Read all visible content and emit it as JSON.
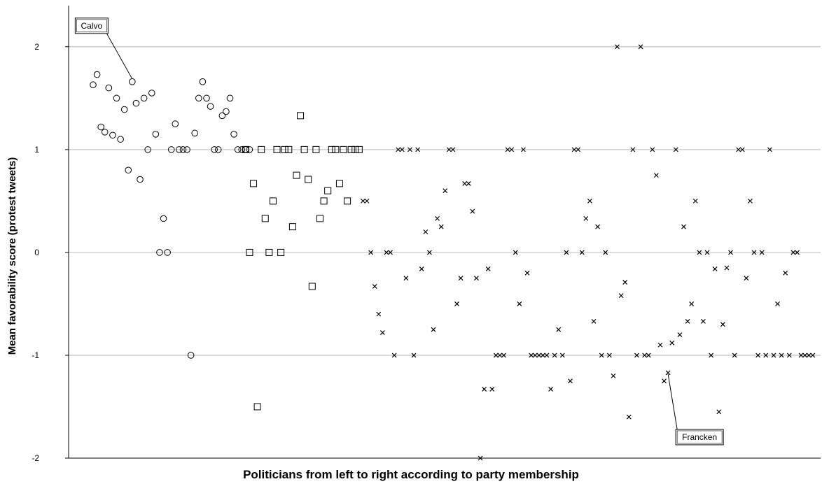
{
  "chart_data": {
    "type": "scatter",
    "xlabel": "Politicians from left to right according to party membership",
    "ylabel": "Mean favorability score (protest tweets)",
    "ylim": [
      -2,
      2.4
    ],
    "yticks": [
      -2,
      -1,
      0,
      1,
      2
    ],
    "grid": true,
    "series": [
      {
        "marker": "circle",
        "x": [
          1,
          2,
          3,
          4,
          5,
          6,
          7,
          8,
          9,
          10,
          11,
          12,
          13,
          14,
          15,
          16,
          17,
          18,
          19,
          20,
          21,
          22,
          23,
          24,
          25,
          26,
          27,
          28,
          29,
          30,
          31,
          32,
          33,
          34,
          35,
          36,
          37,
          38,
          39,
          40,
          41
        ],
        "y": [
          1.63,
          1.73,
          1.22,
          1.17,
          1.6,
          1.14,
          1.5,
          1.1,
          1.39,
          0.8,
          1.66,
          1.45,
          0.71,
          1.5,
          1.0,
          1.55,
          1.15,
          0.0,
          0.33,
          0.0,
          1.0,
          1.25,
          1.0,
          1.0,
          1.0,
          -1.0,
          1.16,
          1.5,
          1.66,
          1.5,
          1.42,
          1.0,
          1.0,
          1.33,
          1.37,
          1.5,
          1.15,
          1.0,
          1.0,
          1.0,
          1.0
        ]
      },
      {
        "marker": "square",
        "x": [
          40,
          41,
          42,
          43,
          44,
          45,
          46,
          47,
          48,
          49,
          50,
          51,
          52,
          53,
          54,
          55,
          56,
          57,
          58,
          59,
          60,
          61,
          62,
          63,
          64,
          65,
          66,
          67,
          68,
          69
        ],
        "y": [
          1.0,
          0.0,
          0.67,
          -1.5,
          1.0,
          0.33,
          0.0,
          0.5,
          1.0,
          0.0,
          1.0,
          1.0,
          0.25,
          0.75,
          1.33,
          1.0,
          0.71,
          -0.33,
          1.0,
          0.33,
          0.5,
          0.6,
          1.0,
          1.0,
          0.67,
          1.0,
          0.5,
          1.0,
          1.0,
          1.0
        ],
        "value_ticks": [
          1.0,
          0.0,
          0.67,
          -1.5,
          1.0,
          0.33,
          0.0,
          0.5,
          1.0,
          0.0,
          1.0,
          1.0,
          0.25,
          0.75,
          1.33,
          1.0,
          0.71,
          -0.33,
          1.0,
          0.33,
          0.5,
          0.6,
          1.0,
          1.0,
          0.67,
          1.0,
          0.5,
          1.0,
          1.0,
          1.0
        ]
      },
      {
        "marker": "cross",
        "x": [
          70,
          71,
          72,
          73,
          74,
          75,
          76,
          77,
          78,
          79,
          80,
          81,
          82,
          83,
          84,
          85,
          86,
          87,
          88,
          89,
          90,
          91,
          92,
          93,
          94,
          95,
          96,
          97,
          98,
          99,
          100,
          101,
          102,
          103,
          104,
          105,
          106,
          107,
          108,
          109,
          110,
          111,
          112,
          113,
          114,
          115,
          116,
          117,
          118,
          119,
          120,
          121,
          122,
          123,
          124,
          125,
          126,
          127,
          128,
          129,
          130,
          131,
          132,
          133,
          134,
          135,
          136,
          137,
          138,
          139,
          140,
          141,
          142,
          143,
          144,
          145,
          146,
          147,
          148,
          149,
          150,
          151,
          152,
          153,
          154,
          155,
          156,
          157,
          158,
          159,
          160,
          161,
          162,
          163,
          164,
          165,
          166,
          167,
          168,
          169,
          170,
          171,
          172,
          173,
          174,
          175,
          176,
          177,
          178,
          179,
          180,
          181,
          182,
          183,
          184,
          185
        ],
        "y": [
          0.5,
          0.5,
          0.0,
          -0.33,
          -0.6,
          -0.78,
          0.0,
          0.0,
          -1.0,
          1.0,
          1.0,
          -0.25,
          1.0,
          -1.0,
          1.0,
          -0.16,
          0.2,
          0.0,
          -0.75,
          0.33,
          0.25,
          0.6,
          1.0,
          1.0,
          -0.5,
          -0.25,
          0.67,
          0.67,
          0.4,
          -0.25,
          -2.0,
          -1.33,
          -0.16,
          -1.33,
          -1.0,
          -1.0,
          -1.0,
          1.0,
          1.0,
          0.0,
          -0.5,
          1.0,
          -0.2,
          -1.0,
          -1.0,
          -1.0,
          -1.0,
          -1.0,
          -1.33,
          -1.0,
          -0.75,
          -1.0,
          0.0,
          -1.25,
          1.0,
          1.0,
          0.0,
          0.33,
          0.5,
          -0.67,
          0.25,
          -1.0,
          0.0,
          -1.0,
          -1.2,
          2.0,
          -0.42,
          -0.29,
          -1.6,
          1.0,
          -1.0,
          2.0,
          -1.0,
          -1.0,
          1.0,
          0.75,
          -0.9,
          -1.25,
          -1.17,
          -0.88,
          1.0,
          -0.8,
          0.25,
          -0.67,
          -0.5,
          0.5,
          0.0,
          -0.67,
          0.0,
          -1.0,
          -0.16,
          -1.55,
          -0.7,
          -0.15,
          0.0,
          -1.0,
          1.0,
          1.0,
          -0.25,
          0.5,
          0.0,
          -1.0,
          0.0,
          -1.0,
          1.0,
          -1.0,
          -0.5,
          -1.0,
          -0.2,
          -1.0,
          0.0,
          0.0,
          -1.0,
          -1.0,
          -1.0,
          -1.0
        ]
      }
    ],
    "annotations": [
      {
        "text": "Calvo",
        "series": 0,
        "point_index": 10
      },
      {
        "text": "Francken",
        "series": 2,
        "point_index": 78
      }
    ]
  }
}
